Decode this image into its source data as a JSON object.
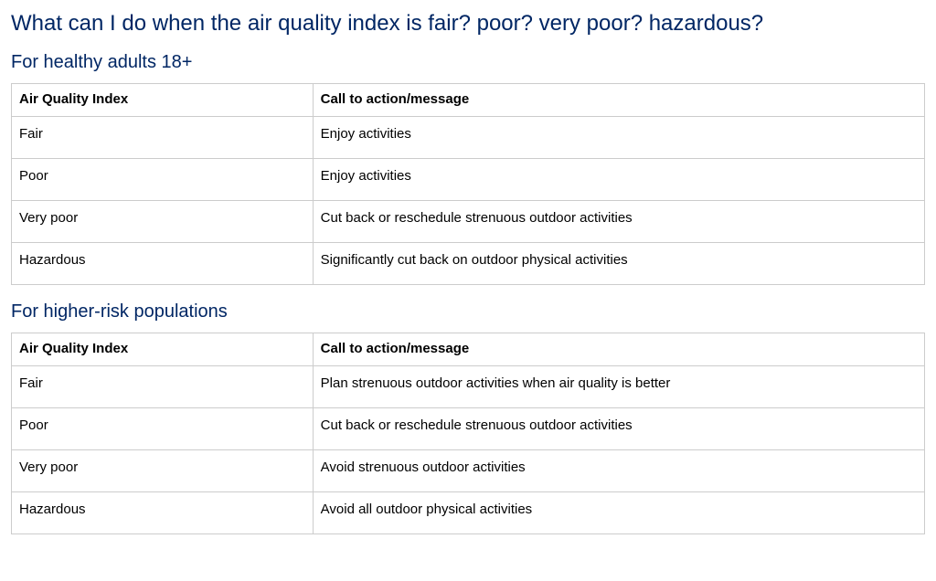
{
  "colors": {
    "heading": "#002664",
    "text": "#000000",
    "border": "#cccccc",
    "background": "#ffffff"
  },
  "typography": {
    "font_family": "Arial, Helvetica, sans-serif",
    "main_heading_size_pt": 18,
    "sub_heading_size_pt": 15,
    "body_size_pt": 11,
    "heading_weight": 400,
    "th_weight": 700
  },
  "layout": {
    "col_index_width_pct": 33,
    "col_action_width_pct": 67
  },
  "main_heading": "What can I do when the air quality index is fair? poor? very poor? hazardous?",
  "sections": [
    {
      "heading": "For healthy adults 18+",
      "columns": [
        "Air Quality Index",
        "Call to action/message"
      ],
      "rows": [
        [
          "Fair",
          "Enjoy activities"
        ],
        [
          "Poor",
          "Enjoy activities"
        ],
        [
          "Very poor",
          "Cut back or reschedule strenuous outdoor activities"
        ],
        [
          "Hazardous",
          "Significantly cut back on outdoor physical activities"
        ]
      ]
    },
    {
      "heading": "For higher-risk populations",
      "columns": [
        "Air Quality Index",
        "Call to action/message"
      ],
      "rows": [
        [
          "Fair",
          "Plan strenuous outdoor activities when air quality is better"
        ],
        [
          "Poor",
          "Cut back or reschedule strenuous outdoor activities"
        ],
        [
          "Very poor",
          "Avoid strenuous outdoor activities"
        ],
        [
          "Hazardous",
          "Avoid all outdoor physical activities"
        ]
      ]
    }
  ]
}
